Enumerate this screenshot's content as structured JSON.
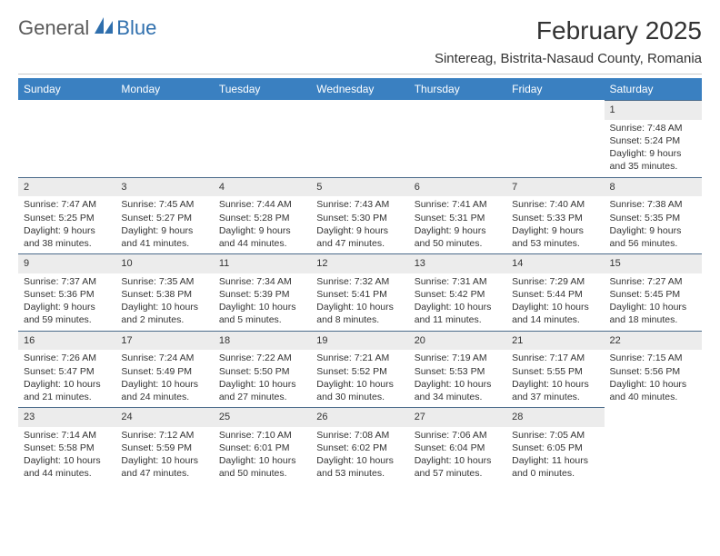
{
  "logo": {
    "text1": "General",
    "text2": "Blue"
  },
  "title": "February 2025",
  "subtitle": "Sintereag, Bistrita-Nasaud County, Romania",
  "style": {
    "header_bg": "#3a80c1",
    "header_text": "#ffffff",
    "daynum_bg": "#ececec",
    "daynum_border": "#4a6a8a",
    "body_text": "#333333",
    "title_fontsize": 28,
    "subtitle_fontsize": 15,
    "dayhead_fontsize": 12,
    "cell_fontsize": 10.5
  },
  "day_headers": [
    "Sunday",
    "Monday",
    "Tuesday",
    "Wednesday",
    "Thursday",
    "Friday",
    "Saturday"
  ],
  "weeks": [
    [
      {
        "n": "",
        "l": [
          "",
          "",
          "",
          ""
        ]
      },
      {
        "n": "",
        "l": [
          "",
          "",
          "",
          ""
        ]
      },
      {
        "n": "",
        "l": [
          "",
          "",
          "",
          ""
        ]
      },
      {
        "n": "",
        "l": [
          "",
          "",
          "",
          ""
        ]
      },
      {
        "n": "",
        "l": [
          "",
          "",
          "",
          ""
        ]
      },
      {
        "n": "",
        "l": [
          "",
          "",
          "",
          ""
        ]
      },
      {
        "n": "1",
        "l": [
          "Sunrise: 7:48 AM",
          "Sunset: 5:24 PM",
          "Daylight: 9 hours",
          "and 35 minutes."
        ]
      }
    ],
    [
      {
        "n": "2",
        "l": [
          "Sunrise: 7:47 AM",
          "Sunset: 5:25 PM",
          "Daylight: 9 hours",
          "and 38 minutes."
        ]
      },
      {
        "n": "3",
        "l": [
          "Sunrise: 7:45 AM",
          "Sunset: 5:27 PM",
          "Daylight: 9 hours",
          "and 41 minutes."
        ]
      },
      {
        "n": "4",
        "l": [
          "Sunrise: 7:44 AM",
          "Sunset: 5:28 PM",
          "Daylight: 9 hours",
          "and 44 minutes."
        ]
      },
      {
        "n": "5",
        "l": [
          "Sunrise: 7:43 AM",
          "Sunset: 5:30 PM",
          "Daylight: 9 hours",
          "and 47 minutes."
        ]
      },
      {
        "n": "6",
        "l": [
          "Sunrise: 7:41 AM",
          "Sunset: 5:31 PM",
          "Daylight: 9 hours",
          "and 50 minutes."
        ]
      },
      {
        "n": "7",
        "l": [
          "Sunrise: 7:40 AM",
          "Sunset: 5:33 PM",
          "Daylight: 9 hours",
          "and 53 minutes."
        ]
      },
      {
        "n": "8",
        "l": [
          "Sunrise: 7:38 AM",
          "Sunset: 5:35 PM",
          "Daylight: 9 hours",
          "and 56 minutes."
        ]
      }
    ],
    [
      {
        "n": "9",
        "l": [
          "Sunrise: 7:37 AM",
          "Sunset: 5:36 PM",
          "Daylight: 9 hours",
          "and 59 minutes."
        ]
      },
      {
        "n": "10",
        "l": [
          "Sunrise: 7:35 AM",
          "Sunset: 5:38 PM",
          "Daylight: 10 hours",
          "and 2 minutes."
        ]
      },
      {
        "n": "11",
        "l": [
          "Sunrise: 7:34 AM",
          "Sunset: 5:39 PM",
          "Daylight: 10 hours",
          "and 5 minutes."
        ]
      },
      {
        "n": "12",
        "l": [
          "Sunrise: 7:32 AM",
          "Sunset: 5:41 PM",
          "Daylight: 10 hours",
          "and 8 minutes."
        ]
      },
      {
        "n": "13",
        "l": [
          "Sunrise: 7:31 AM",
          "Sunset: 5:42 PM",
          "Daylight: 10 hours",
          "and 11 minutes."
        ]
      },
      {
        "n": "14",
        "l": [
          "Sunrise: 7:29 AM",
          "Sunset: 5:44 PM",
          "Daylight: 10 hours",
          "and 14 minutes."
        ]
      },
      {
        "n": "15",
        "l": [
          "Sunrise: 7:27 AM",
          "Sunset: 5:45 PM",
          "Daylight: 10 hours",
          "and 18 minutes."
        ]
      }
    ],
    [
      {
        "n": "16",
        "l": [
          "Sunrise: 7:26 AM",
          "Sunset: 5:47 PM",
          "Daylight: 10 hours",
          "and 21 minutes."
        ]
      },
      {
        "n": "17",
        "l": [
          "Sunrise: 7:24 AM",
          "Sunset: 5:49 PM",
          "Daylight: 10 hours",
          "and 24 minutes."
        ]
      },
      {
        "n": "18",
        "l": [
          "Sunrise: 7:22 AM",
          "Sunset: 5:50 PM",
          "Daylight: 10 hours",
          "and 27 minutes."
        ]
      },
      {
        "n": "19",
        "l": [
          "Sunrise: 7:21 AM",
          "Sunset: 5:52 PM",
          "Daylight: 10 hours",
          "and 30 minutes."
        ]
      },
      {
        "n": "20",
        "l": [
          "Sunrise: 7:19 AM",
          "Sunset: 5:53 PM",
          "Daylight: 10 hours",
          "and 34 minutes."
        ]
      },
      {
        "n": "21",
        "l": [
          "Sunrise: 7:17 AM",
          "Sunset: 5:55 PM",
          "Daylight: 10 hours",
          "and 37 minutes."
        ]
      },
      {
        "n": "22",
        "l": [
          "Sunrise: 7:15 AM",
          "Sunset: 5:56 PM",
          "Daylight: 10 hours",
          "and 40 minutes."
        ]
      }
    ],
    [
      {
        "n": "23",
        "l": [
          "Sunrise: 7:14 AM",
          "Sunset: 5:58 PM",
          "Daylight: 10 hours",
          "and 44 minutes."
        ]
      },
      {
        "n": "24",
        "l": [
          "Sunrise: 7:12 AM",
          "Sunset: 5:59 PM",
          "Daylight: 10 hours",
          "and 47 minutes."
        ]
      },
      {
        "n": "25",
        "l": [
          "Sunrise: 7:10 AM",
          "Sunset: 6:01 PM",
          "Daylight: 10 hours",
          "and 50 minutes."
        ]
      },
      {
        "n": "26",
        "l": [
          "Sunrise: 7:08 AM",
          "Sunset: 6:02 PM",
          "Daylight: 10 hours",
          "and 53 minutes."
        ]
      },
      {
        "n": "27",
        "l": [
          "Sunrise: 7:06 AM",
          "Sunset: 6:04 PM",
          "Daylight: 10 hours",
          "and 57 minutes."
        ]
      },
      {
        "n": "28",
        "l": [
          "Sunrise: 7:05 AM",
          "Sunset: 6:05 PM",
          "Daylight: 11 hours",
          "and 0 minutes."
        ]
      },
      {
        "n": "",
        "l": [
          "",
          "",
          "",
          ""
        ]
      }
    ]
  ]
}
